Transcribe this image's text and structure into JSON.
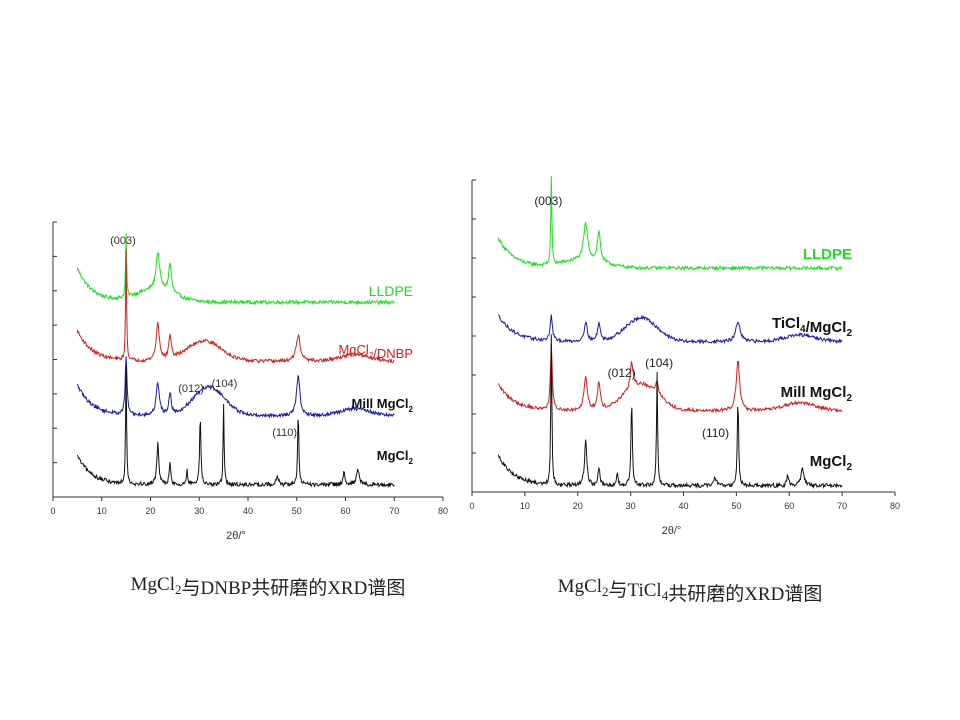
{
  "colors": {
    "LLDPE": "#22dd22",
    "MgCl2/DNBP": "#cc2222",
    "TiCl4/MgCl2": "#1a1aa0",
    "Mill MgCl2": "#1a1aa0",
    "Mill MgCl2 (right)": "#cc2222",
    "MgCl2": "#111111"
  },
  "chart_data": [
    {
      "type": "line",
      "title": "",
      "xlabel": "2θ/°",
      "ylabel": "",
      "xlim": [
        0,
        80
      ],
      "xticks": [
        "0",
        "10",
        "20",
        "30",
        "40",
        "50",
        "60",
        "70",
        "80"
      ],
      "grid": false,
      "legend": "labels right of each trace",
      "caption": {
        "pre": "MgCl",
        "sub": "2",
        "post": "与DNBP共研磨的XRD谱图"
      },
      "annotations": [
        {
          "text": "(003)",
          "x": 15.0
        },
        {
          "text": "(012)",
          "x": 30.2
        },
        {
          "text": "(104)",
          "x": 35.0
        },
        {
          "text": "(110)",
          "x": 50.3
        }
      ],
      "series": [
        {
          "name": "LLDPE",
          "label": {
            "pre": "LLDPE",
            "sub": "",
            "post": ""
          },
          "bold": false,
          "x_range": [
            5,
            70
          ],
          "start": 0.5,
          "end": 0.1,
          "broad": [
            [
              21,
              0.18,
              4
            ]
          ],
          "peaks": [
            [
              15,
              0.95,
              0.12
            ],
            [
              21.5,
              0.55,
              0.45
            ],
            [
              24,
              0.42,
              0.35
            ]
          ],
          "noise": 0.025
        },
        {
          "name": "MgCl2/DNBP",
          "label": {
            "pre": "MgCl",
            "sub": "2",
            "post": "/DNBP"
          },
          "bold": false,
          "x_range": [
            5,
            70
          ],
          "start": 0.45,
          "end": 0.1,
          "broad": [
            [
              31,
              0.3,
              3.5
            ],
            [
              62,
              0.1,
              3
            ]
          ],
          "peaks": [
            [
              15,
              1.6,
              0.12
            ],
            [
              21.5,
              0.55,
              0.4
            ],
            [
              24,
              0.35,
              0.3
            ],
            [
              50.3,
              0.38,
              0.5
            ]
          ],
          "noise": 0.025
        },
        {
          "name": "Mill MgCl2",
          "label": {
            "pre": "Mill MgCl",
            "sub": "2",
            "post": ""
          },
          "bold": true,
          "x_range": [
            5,
            70
          ],
          "start": 0.45,
          "end": 0.05,
          "broad": [
            [
              32,
              0.42,
              3.2
            ],
            [
              62,
              0.1,
              3
            ]
          ],
          "peaks": [
            [
              15,
              0.85,
              0.22
            ],
            [
              21.5,
              0.48,
              0.4
            ],
            [
              24,
              0.32,
              0.3
            ],
            [
              50.3,
              0.6,
              0.4
            ]
          ],
          "noise": 0.025
        },
        {
          "name": "MgCl2",
          "label": {
            "pre": "MgCl",
            "sub": "2",
            "post": ""
          },
          "bold": true,
          "x_range": [
            5,
            70
          ],
          "start": 0.42,
          "end": 0.02,
          "broad": [],
          "peaks": [
            [
              15,
              1.75,
              0.12
            ],
            [
              21.5,
              0.6,
              0.25
            ],
            [
              24,
              0.3,
              0.2
            ],
            [
              27.5,
              0.22,
              0.15
            ],
            [
              30.2,
              1.05,
              0.15
            ],
            [
              35.0,
              1.2,
              0.12
            ],
            [
              46,
              0.12,
              0.3
            ],
            [
              50.3,
              1.05,
              0.15
            ],
            [
              59.7,
              0.18,
              0.2
            ],
            [
              62.5,
              0.25,
              0.3
            ]
          ],
          "noise": 0.03
        }
      ]
    },
    {
      "type": "line",
      "title": "",
      "xlabel": "2θ/°",
      "ylabel": "",
      "xlim": [
        0,
        80
      ],
      "xticks": [
        "0",
        "10",
        "20",
        "30",
        "40",
        "50",
        "60",
        "70",
        "80"
      ],
      "grid": false,
      "legend": "labels right of each trace",
      "caption": {
        "pre": "MgCl",
        "sub": "2",
        "mid": "与TiCl",
        "sub2": "4",
        "post": "共研磨的XRD谱图"
      },
      "annotations": [
        {
          "text": "(003)",
          "x": 15.0
        },
        {
          "text": "(012)",
          "x": 30.2
        },
        {
          "text": "(104)",
          "x": 35.0
        },
        {
          "text": "(110)",
          "x": 50.3
        }
      ],
      "series": [
        {
          "name": "LLDPE",
          "label": {
            "pre": "LLDPE",
            "sub": "",
            "post": ""
          },
          "bold": true,
          "x_range": [
            5,
            70
          ],
          "start": 0.45,
          "end": 0.06,
          "broad": [
            [
              21,
              0.12,
              4
            ]
          ],
          "peaks": [
            [
              15,
              1.35,
              0.12
            ],
            [
              21.5,
              0.55,
              0.45
            ],
            [
              24,
              0.45,
              0.35
            ]
          ],
          "noise": 0.025
        },
        {
          "name": "TiCl4/MgCl2",
          "label": {
            "pre": "TiCl",
            "sub": "4",
            "post": "/MgCl",
            "sub2": "2"
          },
          "bold": true,
          "x_range": [
            5,
            70
          ],
          "start": 0.4,
          "end": 0.05,
          "broad": [
            [
              32,
              0.36,
              3.0
            ],
            [
              62,
              0.1,
              3
            ]
          ],
          "peaks": [
            [
              15,
              0.38,
              0.25
            ],
            [
              21.5,
              0.3,
              0.35
            ],
            [
              24,
              0.28,
              0.3
            ],
            [
              50.3,
              0.3,
              0.5
            ]
          ],
          "noise": 0.025
        },
        {
          "name": "Mill MgCl2",
          "label": {
            "pre": "Mill MgCl",
            "sub": "2",
            "post": ""
          },
          "bold": true,
          "x_range": [
            5,
            70
          ],
          "start": 0.4,
          "end": 0.05,
          "broad": [
            [
              32,
              0.4,
              3.2
            ],
            [
              62,
              0.12,
              3
            ]
          ],
          "peaks": [
            [
              15,
              1.0,
              0.2
            ],
            [
              21.5,
              0.5,
              0.4
            ],
            [
              24,
              0.42,
              0.3
            ],
            [
              30.2,
              0.4,
              0.3
            ],
            [
              35.0,
              0.2,
              0.3
            ],
            [
              50.3,
              0.75,
              0.4
            ]
          ],
          "noise": 0.025
        },
        {
          "name": "MgCl2",
          "label": {
            "pre": "MgCl",
            "sub": "2",
            "post": ""
          },
          "bold": true,
          "x_range": [
            5,
            70
          ],
          "start": 0.45,
          "end": 0.02,
          "broad": [],
          "peaks": [
            [
              15,
              2.3,
              0.12
            ],
            [
              21.5,
              0.7,
              0.25
            ],
            [
              24,
              0.28,
              0.2
            ],
            [
              27.5,
              0.2,
              0.15
            ],
            [
              30.2,
              1.3,
              0.15
            ],
            [
              35.0,
              1.75,
              0.12
            ],
            [
              46,
              0.12,
              0.3
            ],
            [
              50.3,
              1.3,
              0.15
            ],
            [
              59.7,
              0.18,
              0.2
            ],
            [
              62.5,
              0.28,
              0.3
            ]
          ],
          "noise": 0.03
        }
      ]
    }
  ]
}
